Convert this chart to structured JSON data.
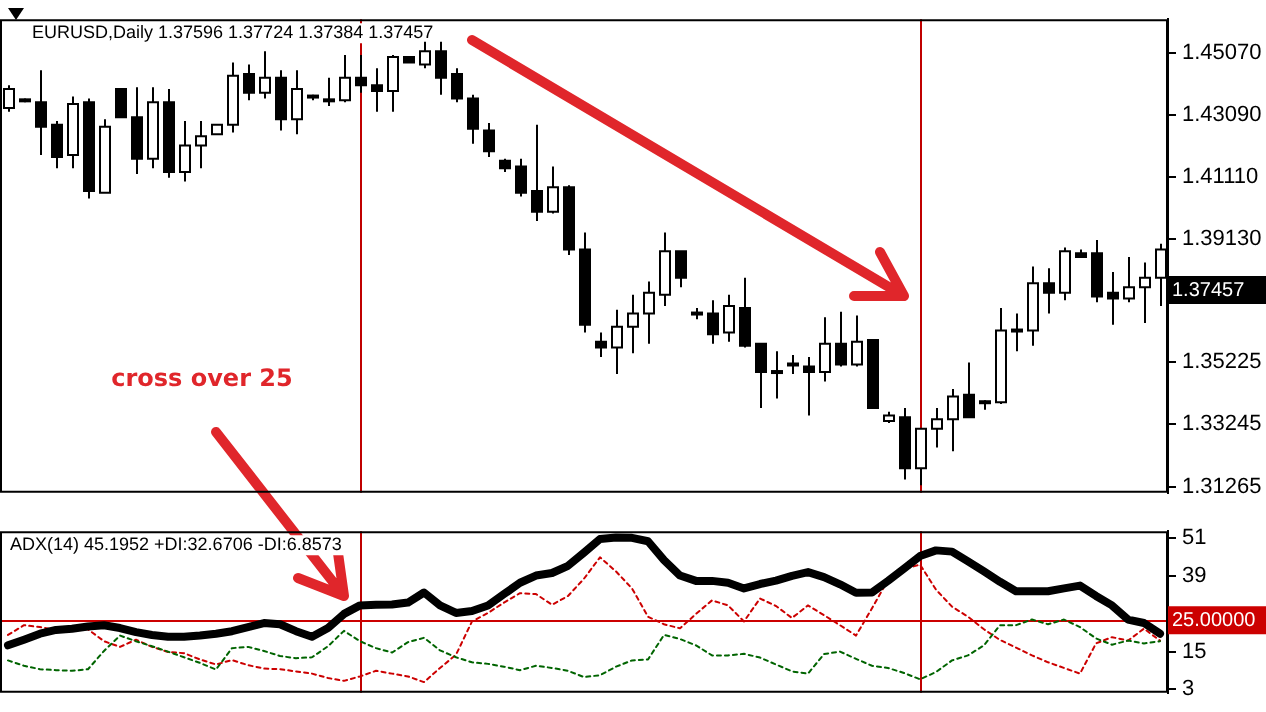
{
  "chart_data": [
    {
      "type": "candlestick",
      "title": "EURUSD,Daily 1.37596 1.37724 1.37384 1.37457",
      "categories": [
        null,
        null,
        null,
        null,
        null,
        null,
        null,
        null,
        null,
        null,
        null,
        null,
        null,
        null,
        null,
        null,
        null,
        null,
        null,
        null,
        null,
        null,
        null,
        null,
        null,
        null,
        null,
        null,
        null,
        null,
        null,
        null,
        null,
        null,
        null,
        null,
        null,
        null,
        null,
        null,
        null,
        null,
        null,
        null,
        null,
        null,
        null,
        null,
        null,
        null,
        null,
        null,
        null,
        null,
        null,
        null,
        null,
        null,
        null,
        null,
        null,
        null,
        null,
        null,
        null,
        null,
        null,
        null,
        null,
        null,
        null,
        null,
        null
      ],
      "ohlc": [
        [
          1.4331,
          1.4403,
          1.4319,
          1.4391
        ],
        [
          1.4355,
          1.4361,
          1.4349,
          1.4355
        ],
        [
          1.4349,
          1.4451,
          1.4181,
          1.4271
        ],
        [
          1.4277,
          1.4289,
          1.4139,
          1.4175
        ],
        [
          1.4181,
          1.4367,
          1.4139,
          1.4343
        ],
        [
          1.4349,
          1.4361,
          1.4043,
          1.4067
        ],
        [
          1.4061,
          1.4295,
          1.4061,
          1.4271
        ],
        [
          1.4391,
          1.4391,
          1.4301,
          1.4301
        ],
        [
          1.4301,
          1.4397,
          1.4121,
          1.4169
        ],
        [
          1.4169,
          1.4397,
          1.4139,
          1.4349
        ],
        [
          1.4349,
          1.4391,
          1.4109,
          1.4127
        ],
        [
          1.4127,
          1.4289,
          1.4097,
          1.4211
        ],
        [
          1.4211,
          1.4289,
          1.4139,
          1.4241
        ],
        [
          1.4247,
          1.4277,
          1.4247,
          1.4277
        ],
        [
          1.4277,
          1.4475,
          1.4253,
          1.4433
        ],
        [
          1.4439,
          1.4469,
          1.4355,
          1.4379
        ],
        [
          1.4379,
          1.4511,
          1.4361,
          1.4427
        ],
        [
          1.4427,
          1.4451,
          1.4259,
          1.4295
        ],
        [
          1.4295,
          1.4451,
          1.4247,
          1.4391
        ],
        [
          1.4367,
          1.4373,
          1.4355,
          1.4365
        ],
        [
          1.4355,
          1.4427,
          1.4337,
          1.4355
        ],
        [
          1.4355,
          1.4499,
          1.4349,
          1.4427
        ],
        [
          1.4427,
          1.4499,
          1.4379,
          1.4403
        ],
        [
          1.4403,
          1.4457,
          1.4319,
          1.4385
        ],
        [
          1.4385,
          1.4499,
          1.4319,
          1.4493
        ],
        [
          1.4493,
          1.4493,
          1.4475,
          1.4475
        ],
        [
          1.4469,
          1.4541,
          1.4457,
          1.4511
        ],
        [
          1.4511,
          1.4541,
          1.4373,
          1.4427
        ],
        [
          1.4439,
          1.4457,
          1.4349,
          1.4361
        ],
        [
          1.4361,
          1.4373,
          1.4217,
          1.4265
        ],
        [
          1.4259,
          1.4283,
          1.4175,
          1.4193
        ],
        [
          1.4163,
          1.4169,
          1.4127,
          1.4139
        ],
        [
          1.4145,
          1.4169,
          1.4049,
          1.4061
        ],
        [
          1.4067,
          1.4277,
          1.3971,
          1.4001
        ],
        [
          1.4001,
          1.4145,
          1.3995,
          1.4079
        ],
        [
          1.4079,
          1.4085,
          1.3863,
          1.3881
        ],
        [
          1.3881,
          1.3935,
          1.3617,
          1.3641
        ],
        [
          1.3587,
          1.3617,
          1.3539,
          1.3569
        ],
        [
          1.3569,
          1.3689,
          1.3485,
          1.3635
        ],
        [
          1.3635,
          1.3737,
          1.3551,
          1.3677
        ],
        [
          1.3677,
          1.3779,
          1.3581,
          1.3743
        ],
        [
          1.3737,
          1.3935,
          1.3701,
          1.3875
        ],
        [
          1.3875,
          1.3875,
          1.3761,
          1.3791
        ],
        [
          1.3677,
          1.3695,
          1.3659,
          1.3677
        ],
        [
          1.3677,
          1.3719,
          1.3581,
          1.3611
        ],
        [
          1.3617,
          1.3737,
          1.3587,
          1.3701
        ],
        [
          1.3695,
          1.3791,
          1.3569,
          1.3575
        ],
        [
          1.3581,
          1.3581,
          1.3377,
          1.3491
        ],
        [
          1.3491,
          1.3557,
          1.3407,
          1.3491
        ],
        [
          1.3515,
          1.3545,
          1.3485,
          1.3515
        ],
        [
          1.3509,
          1.3539,
          1.3353,
          1.3491
        ],
        [
          1.3491,
          1.3665,
          1.3461,
          1.3581
        ],
        [
          1.3581,
          1.3683,
          1.3509,
          1.3515
        ],
        [
          1.3515,
          1.3671,
          1.3509,
          1.3587
        ],
        [
          1.3593,
          1.3593,
          1.3377,
          1.3377
        ],
        [
          1.3335,
          1.3365,
          1.3329,
          1.3353
        ],
        [
          1.3347,
          1.3377,
          1.3149,
          1.3185
        ],
        [
          1.3185,
          1.3311,
          1.3131,
          1.3311
        ],
        [
          1.3311,
          1.3377,
          1.3251,
          1.3341
        ],
        [
          1.3341,
          1.3437,
          1.3239,
          1.3413
        ],
        [
          1.3419,
          1.3521,
          1.3347,
          1.3347
        ],
        [
          1.3395,
          1.3401,
          1.3371,
          1.3395
        ],
        [
          1.3395,
          1.3695,
          1.3389,
          1.3623
        ],
        [
          1.3623,
          1.3677,
          1.3557,
          1.3623
        ],
        [
          1.3623,
          1.3827,
          1.3575,
          1.3773
        ],
        [
          1.3773,
          1.3821,
          1.3677,
          1.3743
        ],
        [
          1.3743,
          1.3887,
          1.3719,
          1.3875
        ],
        [
          1.3869,
          1.3881,
          1.3857,
          1.3857
        ],
        [
          1.3869,
          1.3911,
          1.3713,
          1.3731
        ],
        [
          1.3743,
          1.3809,
          1.3641,
          1.3725
        ],
        [
          1.3725,
          1.3857,
          1.3713,
          1.3761
        ],
        [
          1.3761,
          1.3839,
          1.3647,
          1.3791
        ],
        [
          1.3791,
          1.3899,
          1.3701,
          1.3881
        ]
      ],
      "ylim": [
        1.3107,
        1.4613
      ],
      "yticks": [
        {
          "value": 1.4507,
          "label": "1.45070"
        },
        {
          "value": 1.4309,
          "label": "1.43090"
        },
        {
          "value": 1.4111,
          "label": "1.41110"
        },
        {
          "value": 1.3913,
          "label": "1.39130"
        },
        {
          "value": 1.35225,
          "label": "1.35225"
        },
        {
          "value": 1.33245,
          "label": "1.33245"
        },
        {
          "value": 1.31265,
          "label": "1.31265"
        }
      ],
      "tick_labels": "y",
      "annotations": [
        "cross over 25",
        "1.37457"
      ]
    },
    {
      "type": "line",
      "title": "ADX(14) 45.1952 +DI:32.6706 -DI:6.8573",
      "categories": [
        null,
        null,
        null,
        null,
        null,
        null,
        null,
        null,
        null,
        null,
        null,
        null,
        null,
        null,
        null,
        null,
        null,
        null,
        null,
        null,
        null,
        null,
        null,
        null,
        null,
        null,
        null,
        null,
        null,
        null,
        null,
        null,
        null,
        null,
        null,
        null,
        null,
        null,
        null,
        null,
        null,
        null,
        null,
        null,
        null,
        null,
        null,
        null,
        null,
        null,
        null,
        null,
        null,
        null,
        null,
        null,
        null,
        null,
        null,
        null,
        null,
        null,
        null,
        null,
        null,
        null,
        null,
        null,
        null,
        null,
        null,
        null,
        null
      ],
      "series": [
        {
          "color": "#000000",
          "line_style": "solid",
          "values": [
            17.0,
            18.8,
            20.7,
            21.9,
            22.3,
            23.0,
            23.4,
            22.5,
            21.2,
            20.3,
            19.7,
            19.7,
            20.1,
            20.7,
            21.5,
            22.8,
            24.1,
            23.7,
            21.5,
            19.7,
            22.5,
            27.0,
            29.7,
            29.9,
            30.0,
            30.6,
            33.8,
            29.7,
            27.3,
            27.9,
            29.7,
            33.3,
            36.9,
            39.2,
            40.0,
            42.3,
            46.5,
            50.8,
            51.3,
            51.2,
            50.1,
            44.1,
            39.2,
            37.5,
            37.5,
            36.9,
            35.1,
            36.5,
            37.6,
            39.1,
            40.3,
            38.7,
            36.4,
            33.7,
            33.8,
            37.5,
            41.4,
            45.4,
            47.2,
            46.8,
            43.7,
            40.5,
            37.2,
            34.2,
            34.2,
            34.2,
            35.1,
            36.0,
            32.7,
            29.7,
            25.2,
            24.1,
            20.7
          ]
        },
        {
          "color": "#006400",
          "line_style": "dotted",
          "values": [
            12.2,
            10.5,
            9.4,
            9.1,
            8.9,
            9.4,
            15.2,
            20.1,
            18.3,
            16.7,
            15.0,
            13.2,
            11.4,
            9.3,
            16.1,
            16.5,
            15.2,
            13.6,
            12.9,
            13.2,
            16.7,
            21.6,
            18.3,
            16.1,
            14.7,
            18.0,
            19.4,
            15.4,
            13.2,
            11.6,
            11.1,
            10.2,
            9.1,
            10.5,
            9.8,
            8.9,
            6.9,
            7.5,
            10.2,
            12.2,
            12.5,
            20.3,
            19.0,
            17.0,
            13.8,
            13.8,
            14.3,
            13.1,
            10.9,
            8.7,
            8.0,
            14.2,
            15.0,
            12.7,
            10.5,
            9.8,
            8.2,
            6.2,
            8.5,
            12.2,
            13.8,
            17.0,
            23.4,
            23.4,
            25.2,
            23.7,
            25.2,
            22.8,
            19.2,
            17.2,
            18.5,
            17.6,
            18.3
          ]
        },
        {
          "color": "#cc0000",
          "line_style": "dotted",
          "values": [
            20.3,
            23.4,
            22.8,
            21.9,
            22.1,
            22.1,
            18.3,
            16.5,
            18.8,
            16.5,
            14.9,
            14.5,
            12.5,
            10.9,
            12.3,
            10.7,
            9.6,
            9.4,
            8.7,
            8.0,
            6.6,
            5.7,
            7.1,
            8.9,
            8.0,
            7.1,
            5.3,
            9.8,
            14.0,
            24.6,
            27.3,
            30.6,
            33.6,
            33.3,
            29.9,
            32.7,
            38.2,
            45.0,
            40.5,
            35.1,
            26.1,
            23.7,
            22.4,
            27.0,
            31.3,
            29.7,
            24.6,
            31.9,
            29.5,
            25.7,
            29.7,
            26.6,
            23.4,
            20.1,
            28.8,
            37.8,
            41.2,
            42.7,
            34.7,
            29.3,
            26.1,
            22.1,
            18.7,
            16.3,
            13.8,
            11.6,
            9.8,
            8.0,
            17.6,
            19.6,
            18.5,
            22.3,
            18.5
          ]
        }
      ],
      "ylim": [
        1.9,
        53.3
      ],
      "yticks": [
        3,
        15,
        39,
        51
      ],
      "tick_labels": "y",
      "ref_lines": [
        {
          "axis": "y",
          "value": 25,
          "label": "25.00000",
          "color": "#cc0000"
        }
      ]
    }
  ]
}
